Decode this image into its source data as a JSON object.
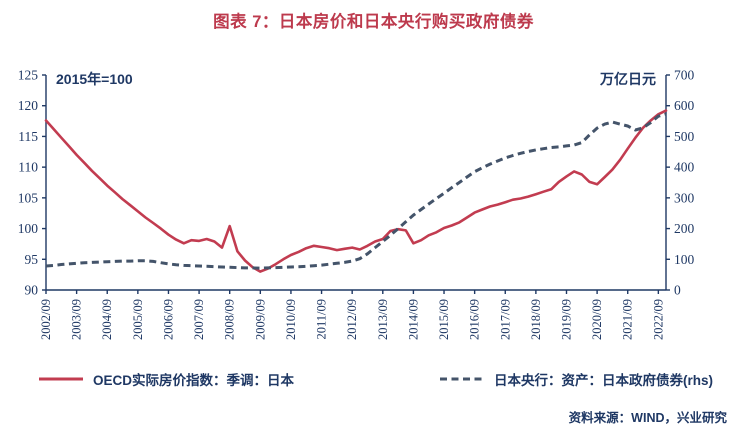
{
  "figure": {
    "title": "图表 7：日本房价和日本央行购买政府债券",
    "source": "资料来源：WIND，兴业研究"
  },
  "colors": {
    "title_color": "#BD3A4D",
    "text_color": "#1F3864",
    "axis_color": "#1F3864",
    "series_red": "#C23C50",
    "series_navy": "#44546A"
  },
  "chart_data": {
    "type": "line",
    "title": "图表 7：日本房价和日本央行购买政府债券",
    "grid": false,
    "legend_position": "bottom",
    "points_per_tick": 4,
    "left_axis": {
      "label": "2015年=100",
      "min": 90,
      "max": 125,
      "ticks": [
        125,
        120,
        115,
        110,
        105,
        100,
        95,
        90
      ]
    },
    "right_axis": {
      "label": "万亿日元",
      "min": 0,
      "max": 700,
      "ticks": [
        700,
        600,
        500,
        400,
        300,
        200,
        100,
        0
      ]
    },
    "x_tick_labels": [
      "2002/09",
      "2003/09",
      "2004/09",
      "2005/09",
      "2006/09",
      "2007/09",
      "2008/09",
      "2009/09",
      "2010/09",
      "2011/09",
      "2012/09",
      "2013/09",
      "2014/09",
      "2015/09",
      "2016/09",
      "2017/09",
      "2018/09",
      "2019/09",
      "2020/09",
      "2021/09",
      "2022/09"
    ],
    "series": [
      {
        "name": "OECD实际房价指数：季调：日本",
        "axis": "left",
        "style": "solid",
        "color": "#C23C50",
        "values": [
          117.6,
          116.2,
          114.8,
          113.4,
          112.0,
          110.7,
          109.4,
          108.2,
          107.0,
          105.9,
          104.8,
          103.8,
          102.8,
          101.8,
          100.9,
          100.0,
          99.0,
          98.2,
          97.6,
          98.1,
          98.0,
          98.3,
          97.9,
          96.9,
          100.4,
          96.3,
          94.8,
          93.7,
          93.0,
          93.5,
          94.2,
          95.0,
          95.7,
          96.2,
          96.8,
          97.2,
          97.0,
          96.8,
          96.5,
          96.7,
          96.9,
          96.6,
          97.2,
          97.9,
          98.3,
          99.6,
          99.9,
          99.7,
          97.6,
          98.1,
          98.9,
          99.4,
          100.1,
          100.5,
          101.0,
          101.8,
          102.6,
          103.1,
          103.6,
          103.9,
          104.3,
          104.7,
          104.9,
          105.2,
          105.6,
          106.0,
          106.4,
          107.6,
          108.5,
          109.3,
          108.8,
          107.6,
          107.2,
          108.4,
          109.6,
          111.2,
          113.0,
          114.8,
          116.4,
          117.6,
          118.6,
          119.2
        ]
      },
      {
        "name": "日本央行：资产：日本政府债券(rhs)",
        "axis": "right",
        "style": "dashed",
        "color": "#44546A",
        "values": [
          78,
          80,
          83,
          85,
          87,
          89,
          90,
          91,
          92,
          93,
          94,
          94,
          95,
          95,
          93,
          89,
          85,
          82,
          80,
          79,
          78,
          77,
          76,
          75,
          74,
          73,
          72,
          72,
          71,
          72,
          73,
          74,
          75,
          76,
          77,
          79,
          81,
          84,
          87,
          90,
          94,
          102,
          118,
          138,
          158,
          178,
          200,
          222,
          244,
          262,
          280,
          298,
          315,
          333,
          350,
          368,
          385,
          398,
          410,
          420,
          430,
          438,
          445,
          451,
          456,
          460,
          464,
          466,
          469,
          472,
          480,
          505,
          527,
          540,
          547,
          540,
          534,
          521,
          528,
          545,
          566,
          573
        ]
      }
    ]
  }
}
